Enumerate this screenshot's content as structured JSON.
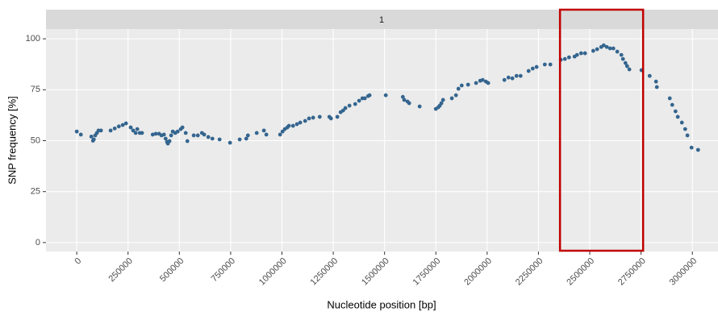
{
  "chart_data": {
    "type": "scatter",
    "strip_label": "1",
    "x_label": "Nucleotide position [bp]",
    "y_label": "SNP frequency [%]",
    "color": "#34658f",
    "grid": true,
    "highlight_x": [
      2355000,
      2760000
    ],
    "highlight_color": "#c00000",
    "xlim": [
      -150000,
      3125000
    ],
    "ylim": [
      -4.4,
      104.8
    ],
    "xticks": [
      0,
      250000,
      500000,
      750000,
      1000000,
      1250000,
      1500000,
      1750000,
      2000000,
      2250000,
      2500000,
      2750000,
      3000000
    ],
    "yticks": [
      0,
      25,
      50,
      75,
      100
    ],
    "x": [
      0,
      20000,
      71000,
      79000,
      83000,
      90000,
      98000,
      106000,
      118000,
      165000,
      185000,
      205000,
      224000,
      240000,
      263000,
      275000,
      287000,
      295000,
      307000,
      318000,
      370000,
      385000,
      401000,
      413000,
      425000,
      433000,
      440000,
      444000,
      452000,
      460000,
      468000,
      480000,
      492000,
      507000,
      515000,
      531000,
      539000,
      570000,
      590000,
      610000,
      621000,
      641000,
      661000,
      696000,
      747000,
      794000,
      826000,
      834000,
      877000,
      912000,
      924000,
      991000,
      1003000,
      1014000,
      1026000,
      1034000,
      1054000,
      1073000,
      1089000,
      1113000,
      1132000,
      1152000,
      1184000,
      1231000,
      1239000,
      1270000,
      1286000,
      1298000,
      1309000,
      1329000,
      1357000,
      1376000,
      1392000,
      1404000,
      1420000,
      1427000,
      1506000,
      1589000,
      1596000,
      1612000,
      1620000,
      1671000,
      1750000,
      1762000,
      1769000,
      1777000,
      1785000,
      1828000,
      1848000,
      1860000,
      1876000,
      1907000,
      1946000,
      1966000,
      1978000,
      1994000,
      2005000,
      2084000,
      2104000,
      2123000,
      2143000,
      2163000,
      2202000,
      2222000,
      2241000,
      2281000,
      2308000,
      2359000,
      2379000,
      2399000,
      2426000,
      2438000,
      2458000,
      2477000,
      2517000,
      2536000,
      2556000,
      2568000,
      2583000,
      2599000,
      2615000,
      2634000,
      2654000,
      2662000,
      2674000,
      2682000,
      2693000,
      2752000,
      2792000,
      2823000,
      2827000,
      2890000,
      2902000,
      2918000,
      2929000,
      2949000,
      2965000,
      2976000,
      2996000,
      3028000
    ],
    "values": [
      54.5,
      53,
      52,
      50,
      50.6,
      52.6,
      53.8,
      55,
      55,
      55,
      56,
      57,
      57.7,
      58.5,
      56.5,
      55,
      53.8,
      55.7,
      53.8,
      53.8,
      53,
      53.4,
      53.4,
      52.6,
      53,
      51,
      49.4,
      48.6,
      49.8,
      52.6,
      54.5,
      53.8,
      54.5,
      55.7,
      56.5,
      53.8,
      49.8,
      52.6,
      52.6,
      53.8,
      53,
      51.8,
      51,
      50.6,
      49,
      50.6,
      51,
      52.6,
      53.8,
      55,
      53,
      53,
      54.5,
      55.7,
      56.5,
      57.3,
      57.3,
      58.1,
      58.9,
      59.7,
      60.9,
      61.3,
      61.7,
      61.7,
      60.9,
      61.7,
      64,
      64.8,
      66,
      67.2,
      68,
      69.6,
      70.8,
      70.8,
      71.9,
      72.3,
      72.3,
      71.5,
      70,
      69.2,
      68.4,
      66.8,
      65.6,
      66.4,
      67.2,
      68.4,
      70,
      70.8,
      72.3,
      75.5,
      77.1,
      77.5,
      78.3,
      79.4,
      79.8,
      79,
      78.3,
      79.8,
      81,
      80.6,
      81.8,
      81.8,
      84.2,
      85.4,
      86.2,
      87.4,
      87.4,
      89.7,
      90.1,
      90.9,
      91.3,
      92.1,
      92.9,
      92.9,
      94.1,
      94.9,
      96,
      96.8,
      96,
      95.3,
      95.3,
      93.7,
      92.1,
      90.1,
      88.1,
      86.6,
      85,
      84.6,
      81.8,
      79,
      76.3,
      70.8,
      67.6,
      64.4,
      61.7,
      58.9,
      55.7,
      52.6,
      46.6,
      45.5
    ]
  }
}
